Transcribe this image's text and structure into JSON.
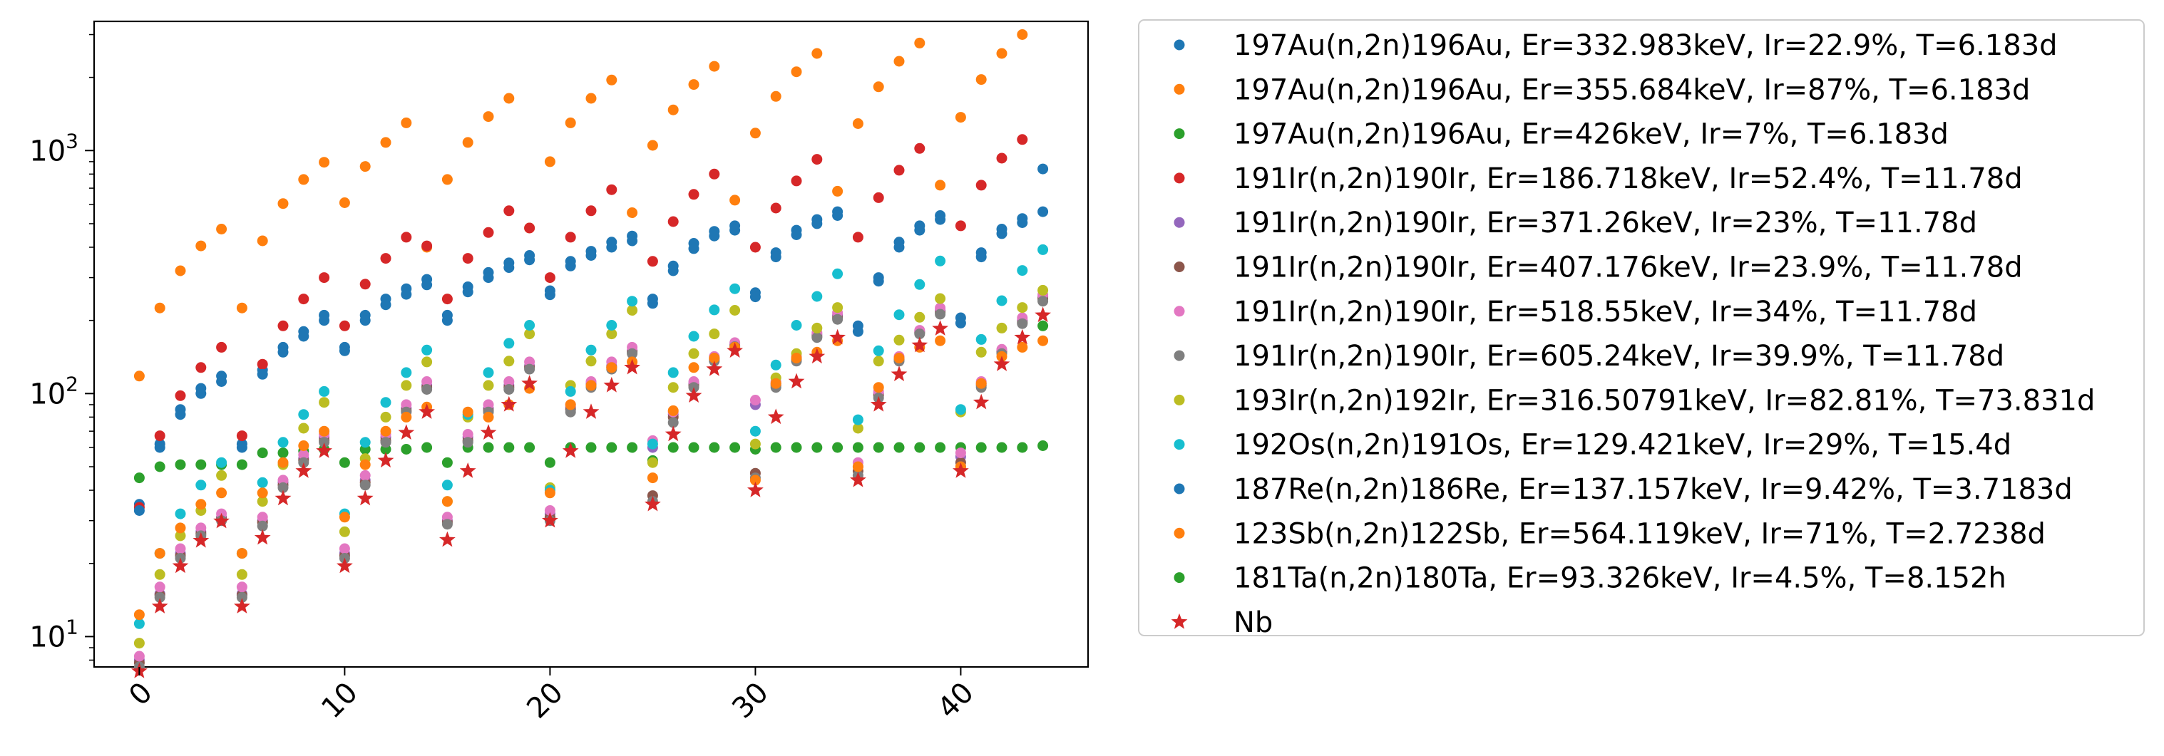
{
  "chart_data": {
    "type": "scatter",
    "title": "",
    "xlabel": "",
    "ylabel": "",
    "xlim": [
      -2.2,
      46.2
    ],
    "ylim": [
      7.5,
      3400
    ],
    "yscale": "log",
    "grid": false,
    "legend_position": "right, outside the axes",
    "x_ticks": [
      0,
      10,
      20,
      30,
      40
    ],
    "y_ticks": [
      {
        "value": 10,
        "base": "10",
        "exp": "1"
      },
      {
        "value": 100,
        "base": "10",
        "exp": "2"
      },
      {
        "value": 1000,
        "base": "10",
        "exp": "3"
      }
    ],
    "x": [
      0,
      1,
      2,
      3,
      4,
      5,
      6,
      7,
      8,
      9,
      10,
      11,
      12,
      13,
      14,
      15,
      16,
      17,
      18,
      19,
      20,
      21,
      22,
      23,
      24,
      25,
      26,
      27,
      28,
      29,
      30,
      31,
      32,
      33,
      34,
      35,
      36,
      37,
      38,
      39,
      40,
      41,
      42,
      43,
      44
    ],
    "series": [
      {
        "name": "197Au(n,2n)196Au, Er=332.983keV, Ir=22.9%, T=6.183d",
        "color": "#1f77b4",
        "marker": "circle",
        "values": [
          35,
          62,
          86,
          105,
          118,
          62,
          125,
          155,
          180,
          210,
          155,
          210,
          245,
          270,
          295,
          210,
          275,
          315,
          345,
          370,
          265,
          350,
          385,
          420,
          445,
          245,
          335,
          415,
          465,
          490,
          260,
          380,
          470,
          520,
          560,
          190,
          300,
          420,
          490,
          540,
          205,
          380,
          475,
          525,
          560
        ]
      },
      {
        "name": "197Au(n,2n)196Au, Er=355.684keV, Ir=87%, T=6.183d",
        "color": "#ff7f0e",
        "marker": "circle",
        "values": [
          118,
          225,
          320,
          405,
          475,
          225,
          425,
          605,
          760,
          895,
          610,
          860,
          1080,
          1300,
          400,
          760,
          1080,
          1380,
          1640,
          480,
          900,
          1300,
          1640,
          1950,
          555,
          1050,
          1470,
          1870,
          2220,
          625,
          1180,
          1670,
          2110,
          2510,
          680,
          1290,
          1830,
          2330,
          2770,
          720,
          1370,
          1960,
          2510,
          3000,
          null
        ]
      },
      {
        "name": "197Au(n,2n)196Au, Er=426keV, Ir=7%, T=6.183d",
        "color": "#2ca02c",
        "marker": "circle",
        "values": [
          45,
          50,
          51,
          51,
          51,
          51,
          57,
          57,
          58,
          59,
          52,
          59,
          59,
          59,
          60,
          52,
          60,
          60,
          60,
          60,
          52,
          60,
          60,
          60,
          60,
          53,
          60,
          60,
          60,
          60,
          59,
          60,
          60,
          60,
          60,
          60,
          60,
          60,
          60,
          60,
          60,
          60,
          60,
          60,
          61
        ]
      },
      {
        "name": "191Ir(n,2n)190Ir, Er=186.718keV, Ir=52.4%, T=11.78d",
        "color": "#d62728",
        "marker": "circle",
        "values": [
          34,
          67,
          98,
          128,
          155,
          67,
          132,
          190,
          245,
          300,
          190,
          282,
          360,
          440,
          405,
          245,
          360,
          460,
          565,
          480,
          300,
          440,
          565,
          690,
          null,
          350,
          510,
          660,
          800,
          null,
          400,
          580,
          750,
          920,
          null,
          440,
          640,
          830,
          1020,
          null,
          490,
          720,
          930,
          1110,
          null
        ]
      },
      {
        "name": "191Ir(n,2n)190Ir, Er=371.26keV, Ir=23%, T=11.78d",
        "color": "#9467bd",
        "marker": "circle",
        "values": [
          8,
          15,
          22,
          27,
          31,
          15,
          30,
          43,
          54,
          66,
          22,
          44,
          66,
          87,
          108,
          30,
          66,
          87,
          108,
          130,
          32,
          88,
          110,
          130,
          150,
          60,
          82,
          110,
          140,
          160,
          90,
          110,
          140,
          175,
          210,
          50,
          100,
          140,
          180,
          220,
          55,
          110,
          150,
          200,
          250
        ]
      },
      {
        "name": "191Ir(n,2n)190Ir, Er=407.176keV, Ir=23.9%, T=11.78d",
        "color": "#8c564b",
        "marker": "circle",
        "values": [
          7.8,
          14.8,
          21.5,
          26.5,
          30.5,
          14.8,
          29.5,
          42,
          53,
          64,
          21.5,
          43,
          64,
          85,
          106,
          29.5,
          64,
          85,
          106,
          128,
          31,
          86,
          108,
          128,
          148,
          38,
          80,
          108,
          138,
          158,
          47,
          108,
          138,
          172,
          205,
          48,
          98,
          138,
          178,
          215,
          52,
          108,
          148,
          196,
          245
        ]
      },
      {
        "name": "191Ir(n,2n)190Ir, Er=518.55keV, Ir=34%, T=11.78d",
        "color": "#e377c2",
        "marker": "circle",
        "values": [
          8.3,
          16,
          23,
          28,
          32,
          16,
          31,
          44,
          56,
          68,
          23,
          46,
          68,
          90,
          112,
          31,
          68,
          90,
          112,
          135,
          33,
          90,
          112,
          135,
          155,
          64,
          84,
          112,
          142,
          162,
          94,
          112,
          142,
          178,
          215,
          52,
          102,
          142,
          182,
          225,
          57,
          112,
          152,
          205,
          255
        ]
      },
      {
        "name": "191Ir(n,2n)190Ir, Er=605.24keV, Ir=39.9%, T=11.78d",
        "color": "#7f7f7f",
        "marker": "circle",
        "values": [
          7.5,
          14.5,
          21,
          26,
          30,
          14.5,
          28.5,
          41,
          52,
          63,
          21,
          42,
          63,
          84,
          104,
          29,
          63,
          84,
          104,
          126,
          30,
          84,
          106,
          126,
          146,
          36,
          76,
          106,
          136,
          156,
          45,
          106,
          136,
          170,
          202,
          46,
          96,
          136,
          176,
          212,
          50,
          106,
          146,
          194,
          240
        ]
      },
      {
        "name": "193Ir(n,2n)192Ir, Er=316.50791keV, Ir=82.81%, T=73.831d",
        "color": "#bcbd22",
        "marker": "circle",
        "values": [
          9.4,
          18,
          26,
          33,
          46,
          18,
          36,
          51,
          72,
          92,
          27,
          54,
          80,
          108,
          135,
          36,
          80,
          108,
          136,
          176,
          41,
          108,
          136,
          176,
          220,
          52,
          106,
          146,
          176,
          220,
          62,
          116,
          146,
          186,
          226,
          72,
          136,
          166,
          206,
          246,
          84,
          148,
          186,
          226,
          266
        ]
      },
      {
        "name": "192Os(n,2n)191Os, Er=129.421keV, Ir=29%, T=15.4d",
        "color": "#17becf",
        "marker": "circle",
        "values": [
          11.3,
          22,
          32,
          42,
          52,
          22,
          43,
          63,
          82,
          102,
          32,
          63,
          92,
          122,
          151,
          42,
          82,
          122,
          161,
          191,
          40,
          102,
          151,
          191,
          240,
          62,
          122,
          172,
          221,
          270,
          70,
          131,
          191,
          251,
          311,
          78,
          150,
          211,
          281,
          351,
          86,
          167,
          241,
          321,
          391
        ]
      },
      {
        "name": "187Re(n,2n)186Re, Er=137.157keV, Ir=9.42%, T=3.7183d",
        "color": "#1f77b4",
        "marker": "circle",
        "values": [
          33,
          60,
          82,
          100,
          112,
          60,
          120,
          148,
          172,
          200,
          150,
          200,
          232,
          256,
          280,
          200,
          262,
          300,
          330,
          355,
          255,
          335,
          370,
          400,
          425,
          235,
          320,
          395,
          445,
          470,
          250,
          365,
          450,
          500,
          540,
          180,
          290,
          400,
          470,
          520,
          195,
          365,
          455,
          505,
          840
        ]
      },
      {
        "name": "123Sb(n,2n)122Sb, Er=564.119keV, Ir=71%, T=2.7238d",
        "color": "#ff7f0e",
        "marker": "circle",
        "values": [
          12.3,
          22,
          28,
          35,
          39,
          22,
          39,
          52,
          61,
          70,
          31,
          51,
          70,
          80,
          88,
          36,
          84,
          80,
          90,
          105,
          39,
          90,
          108,
          128,
          135,
          45,
          85,
          128,
          140,
          155,
          44,
          110,
          140,
          148,
          165,
          50,
          106,
          140,
          155,
          165,
          50,
          110,
          142,
          155,
          165
        ]
      },
      {
        "name": "181Ta(n,2n)180Ta, Er=93.326keV, Ir=4.5%, T=8.152h",
        "color": "#2ca02c",
        "marker": "circle",
        "values": [
          null,
          null,
          null,
          null,
          null,
          null,
          null,
          null,
          null,
          null,
          null,
          null,
          null,
          null,
          null,
          null,
          null,
          null,
          null,
          null,
          null,
          null,
          null,
          null,
          null,
          null,
          null,
          null,
          null,
          null,
          null,
          null,
          null,
          null,
          null,
          null,
          null,
          null,
          null,
          null,
          null,
          null,
          null,
          null,
          190
        ]
      },
      {
        "name": "Nb",
        "color": "#d62728",
        "marker": "star",
        "values": [
          7.2,
          13.3,
          19.5,
          24.8,
          29.8,
          13.3,
          25.5,
          37,
          48,
          58,
          19.5,
          37,
          53,
          69,
          84,
          25,
          48,
          69,
          90,
          110,
          30,
          58,
          84,
          108,
          128,
          35,
          68,
          98,
          126,
          150,
          40,
          80,
          112,
          142,
          170,
          44,
          90,
          120,
          158,
          185,
          48,
          92,
          132,
          170,
          210
        ]
      }
    ]
  }
}
